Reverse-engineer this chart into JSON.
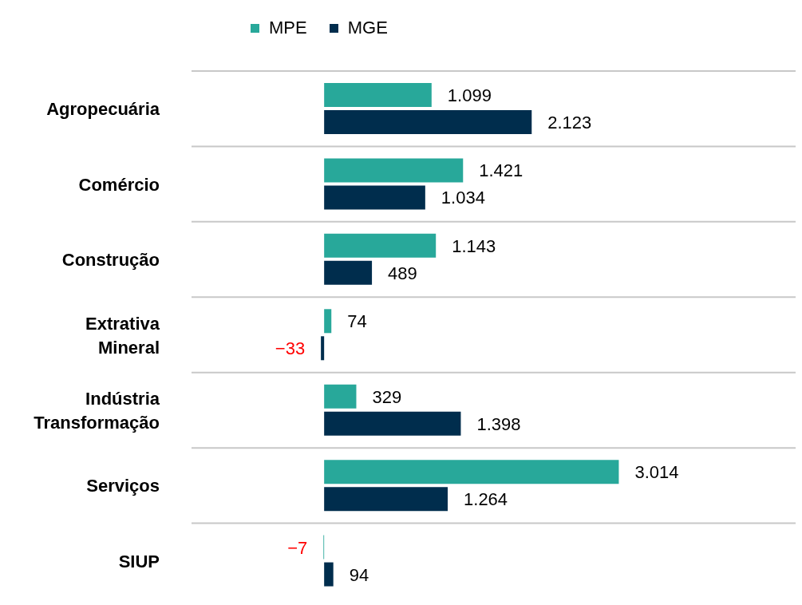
{
  "chart_data": {
    "type": "bar",
    "orientation": "horizontal",
    "categories": [
      "Agropecuária",
      "Comércio",
      "Construção",
      "Extrativa Mineral",
      "Indústria Transformação",
      "Serviços",
      "SIUP"
    ],
    "series": [
      {
        "name": "MPE",
        "color": "#28a89a",
        "values": [
          1099,
          1421,
          1143,
          74,
          329,
          3014,
          -7
        ],
        "value_labels": [
          "1.099",
          "1.421",
          "1.143",
          "74",
          "329",
          "3.014",
          "−7"
        ]
      },
      {
        "name": "MGE",
        "color": "#002d4d",
        "values": [
          2123,
          1034,
          489,
          -33,
          1398,
          1264,
          94
        ],
        "value_labels": [
          "2.123",
          "1.034",
          "489",
          "−33",
          "1.398",
          "1.264",
          "94"
        ]
      }
    ],
    "legend": "top",
    "grid": "y",
    "tick_labels": "y"
  }
}
